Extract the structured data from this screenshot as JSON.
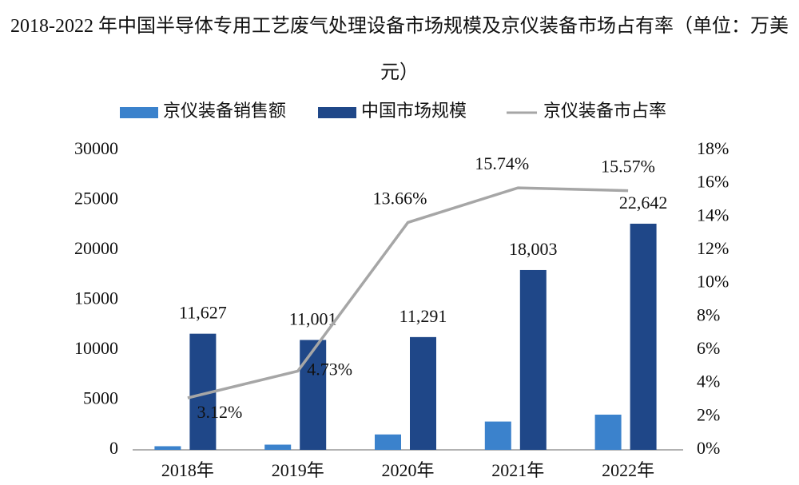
{
  "chart_data": {
    "type": "bar-line",
    "title": "2018-2022 年中国半导体专用工艺废气处理设备市场规模及京仪装备市场占有率（单位：万美元）",
    "categories": [
      "2018年",
      "2019年",
      "2020年",
      "2021年",
      "2022年"
    ],
    "series": [
      {
        "name": "京仪装备销售额",
        "color": "#3b82cc",
        "type": "bar",
        "values": [
          363,
          520,
          1542,
          2834,
          3525
        ]
      },
      {
        "name": "中国市场规模",
        "color": "#1f4788",
        "type": "bar",
        "values": [
          11627,
          11001,
          11291,
          18003,
          22642
        ],
        "value_labels": [
          "11,627",
          "11,001",
          "11,291",
          "18,003",
          "22,642"
        ]
      },
      {
        "name": "京仪装备市占率",
        "color": "#a6a6a6",
        "type": "line",
        "axis": "y2",
        "values": [
          3.12,
          4.73,
          13.66,
          15.74,
          15.57
        ],
        "value_labels": [
          "3.12%",
          "4.73%",
          "13.66%",
          "15.74%",
          "15.57%"
        ]
      }
    ],
    "ylim": [
      0,
      30000
    ],
    "yticks": [
      0,
      5000,
      10000,
      15000,
      20000,
      25000,
      30000
    ],
    "y2lim": [
      0,
      18
    ],
    "y2ticks": [
      {
        "value": 0,
        "label": "0%"
      },
      {
        "value": 2,
        "label": "2%"
      },
      {
        "value": 4,
        "label": "4%"
      },
      {
        "value": 6,
        "label": "6%"
      },
      {
        "value": 8,
        "label": "8%"
      },
      {
        "value": 10,
        "label": "10%"
      },
      {
        "value": 12,
        "label": "12%"
      },
      {
        "value": 14,
        "label": "14%"
      },
      {
        "value": 16,
        "label": "16%"
      },
      {
        "value": 18,
        "label": "18%"
      }
    ],
    "legend": "top",
    "grid": false
  }
}
